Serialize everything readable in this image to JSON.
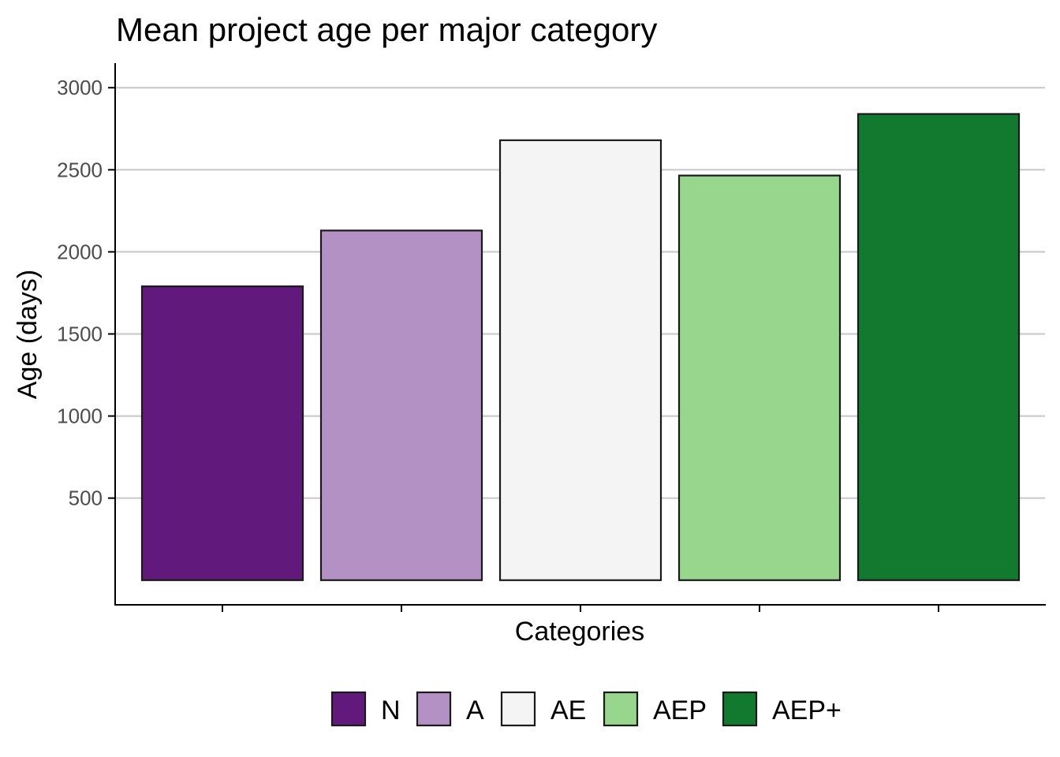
{
  "chart_data": {
    "type": "bar",
    "title": "Mean project age per major category",
    "xlabel": "Categories",
    "ylabel": "Age (days)",
    "categories": [
      "N",
      "A",
      "AE",
      "AEP",
      "AEP+"
    ],
    "values": [
      1790,
      2130,
      2680,
      2465,
      2840
    ],
    "colors": [
      "#62197c",
      "#b491c4",
      "#f4f4f4",
      "#98d68d",
      "#117a2e"
    ],
    "bar_outline_color": "#1a1a1a",
    "yticks": [
      500,
      1000,
      1500,
      2000,
      2500,
      3000
    ],
    "ylim": [
      -150,
      3150
    ],
    "grid": "horizontal",
    "legend_placement": "bottom",
    "x_tick_labels_shown": false
  }
}
